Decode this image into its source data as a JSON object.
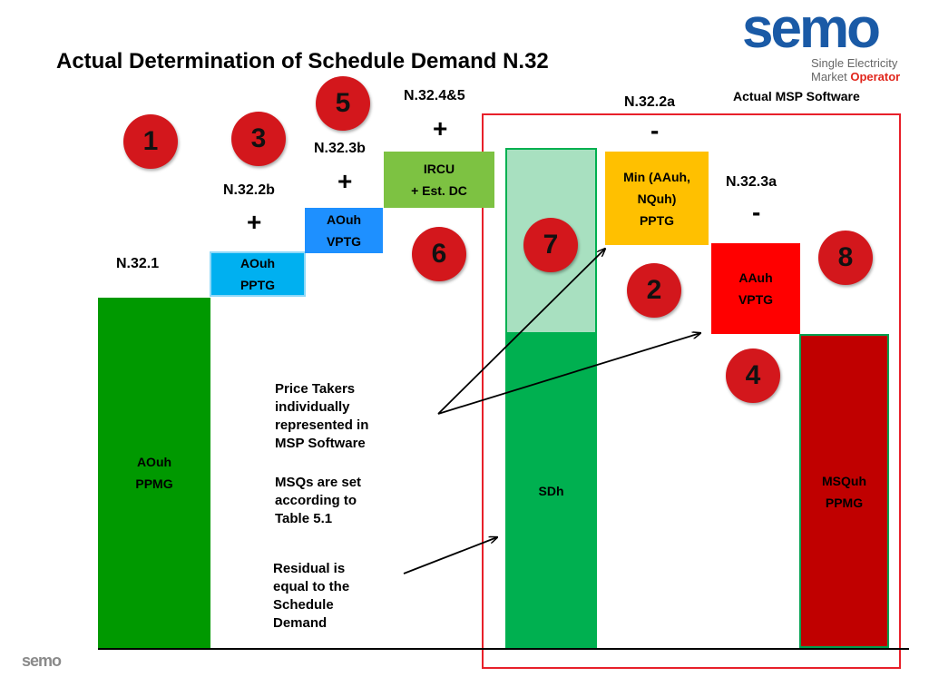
{
  "title": "Actual Determination of Schedule Demand N.32",
  "logo": {
    "brand": "semo",
    "line1": "Single Electricity",
    "line2a": "Market ",
    "line2b": "Operator",
    "colors": {
      "brand": "#1a5aa6",
      "accent": "#e1261c"
    }
  },
  "software_label": "Actual MSP Software",
  "labels": {
    "n32_1": "N.32.1",
    "n32_2b": "N.32.2b",
    "n32_3b": "N.32.3b",
    "n32_45": "N.32.4&5",
    "n32_2a": "N.32.2a",
    "n32_3a": "N.32.3a"
  },
  "operators": {
    "plus1": "+",
    "plus2": "+",
    "plus3": "+",
    "minus1": "-",
    "minus2": "-"
  },
  "boxes": {
    "aouh_ppmg": {
      "line1": "AOuh",
      "line2": "PPMG",
      "color": "#009900"
    },
    "aouh_pptg": {
      "line1": "AOuh",
      "line2": "PPTG",
      "color": "#00b0f0"
    },
    "aouh_vptg": {
      "line1": "AOuh",
      "line2": "VPTG",
      "color": "#1e90ff"
    },
    "ircu": {
      "line1": "IRCU",
      "line2": "+ Est. DC",
      "color": "#7dc242"
    },
    "sdh": {
      "line1": "SDh",
      "color": "#00b050",
      "top_color": "#a8e0c0"
    },
    "min_pptg": {
      "line1": "Min (AAuh,",
      "line2": "NQuh)",
      "line3": "PPTG",
      "color": "#ffc000"
    },
    "aauh_vptg": {
      "line1": "AAuh",
      "line2": "VPTG",
      "color": "#ff0000"
    },
    "msquh_ppmg": {
      "line1": "MSQuh",
      "line2": "PPMG",
      "color": "#c00000"
    }
  },
  "circles": {
    "c1": "1",
    "c2": "2",
    "c3": "3",
    "c4": "4",
    "c5": "5",
    "c6": "6",
    "c7": "7",
    "c8": "8"
  },
  "notes": {
    "price_takers": "Price Takers\nindividually\nrepresented in\nMSP Software",
    "msqs": "MSQs are set\naccording to\nTable 5.1",
    "residual": "Residual is\nequal to the\nSchedule\nDemand"
  },
  "footer_logo": {
    "brand": "semo"
  }
}
